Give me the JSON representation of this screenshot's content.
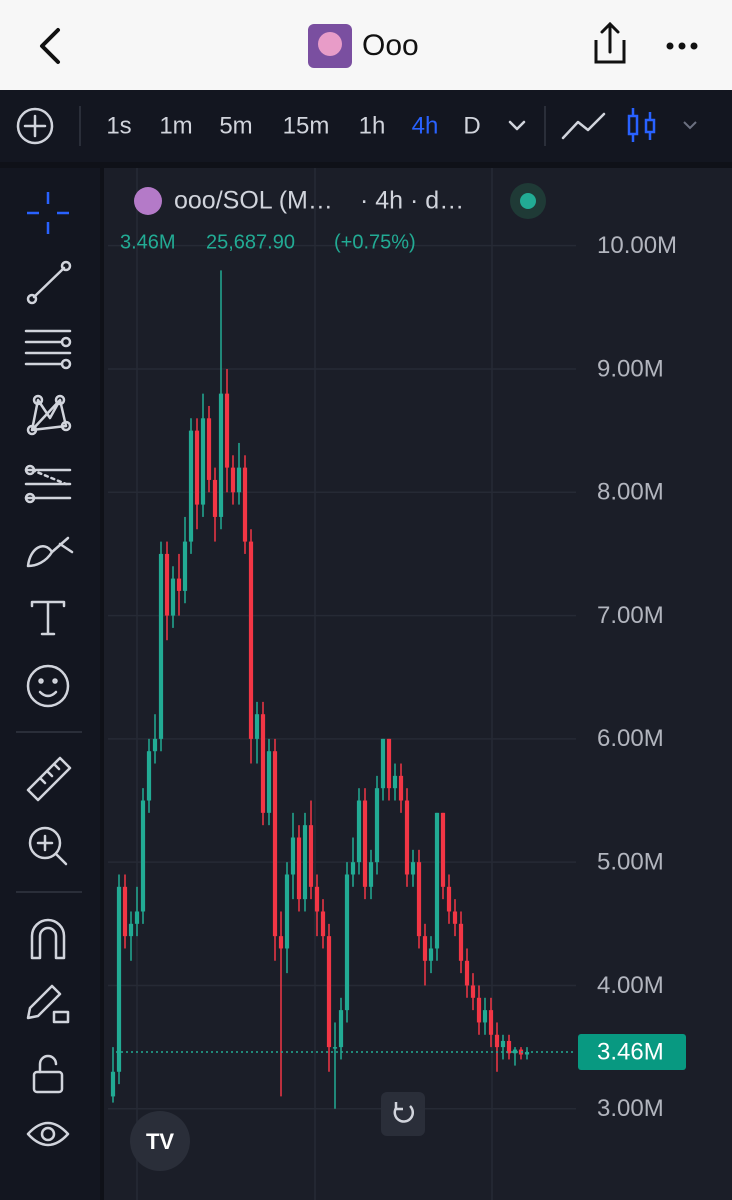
{
  "header": {
    "title": "Ooo"
  },
  "toolbar": {
    "timeframes": [
      "1s",
      "1m",
      "5m",
      "15m",
      "1h",
      "4h",
      "D"
    ],
    "active": "4h"
  },
  "legend": {
    "symbol": "ooo/SOL (M…",
    "interval": "· 4h · d…",
    "price": "3.46M",
    "change": "25,687.90",
    "change_pct": "(+0.75%)"
  },
  "chart_data": {
    "type": "candlestick",
    "open": [
      3.1,
      3.3,
      4.8,
      4.4,
      4.5,
      4.6,
      5.5,
      5.9,
      6.0,
      7.5,
      7.0,
      7.3,
      7.2,
      7.6,
      8.5,
      7.9,
      8.6,
      8.1,
      7.8,
      8.8,
      8.2,
      8.0,
      8.2,
      7.6,
      6.0,
      6.2,
      5.4,
      5.9,
      4.4,
      4.3,
      4.9,
      5.2,
      4.7,
      5.3,
      4.8,
      4.6,
      4.4,
      3.5,
      3.5,
      3.8,
      4.9,
      5.0,
      5.5,
      4.8,
      5.0,
      5.6,
      6.0,
      5.6,
      5.7,
      5.5,
      4.9,
      5.0,
      4.4,
      4.2,
      4.3,
      5.4,
      4.8,
      4.6,
      4.5,
      4.2,
      4.0,
      3.9,
      3.7,
      3.8,
      3.6,
      3.5,
      3.55,
      3.45,
      3.48,
      3.44
    ],
    "high": [
      3.5,
      4.9,
      4.9,
      4.6,
      4.8,
      5.6,
      6.0,
      6.2,
      7.6,
      7.6,
      7.4,
      7.5,
      7.8,
      8.6,
      8.6,
      8.8,
      8.7,
      8.2,
      9.8,
      9.0,
      8.3,
      8.4,
      8.3,
      7.7,
      6.3,
      6.3,
      6.0,
      6.0,
      4.6,
      5.0,
      5.4,
      5.3,
      5.4,
      5.5,
      4.9,
      4.7,
      4.5,
      3.7,
      3.9,
      5.0,
      5.2,
      5.6,
      5.6,
      5.1,
      5.7,
      6.0,
      6.0,
      5.8,
      5.8,
      5.6,
      5.1,
      5.1,
      4.5,
      4.4,
      5.4,
      5.4,
      4.9,
      4.7,
      4.6,
      4.3,
      4.1,
      4.0,
      3.9,
      3.9,
      3.7,
      3.6,
      3.6,
      3.5,
      3.5,
      3.5
    ],
    "low": [
      3.05,
      3.2,
      4.3,
      4.2,
      4.4,
      4.5,
      5.4,
      5.8,
      5.9,
      6.8,
      6.9,
      7.0,
      7.1,
      7.5,
      7.7,
      7.8,
      8.0,
      7.6,
      7.7,
      8.0,
      7.9,
      7.9,
      7.5,
      5.8,
      5.8,
      5.3,
      5.3,
      4.2,
      3.1,
      4.1,
      4.7,
      4.6,
      4.6,
      4.7,
      4.4,
      4.3,
      3.3,
      3.0,
      3.4,
      3.7,
      4.8,
      4.9,
      4.7,
      4.7,
      4.9,
      5.5,
      5.5,
      5.5,
      5.4,
      4.8,
      4.8,
      4.3,
      4.0,
      4.1,
      4.2,
      4.7,
      4.5,
      4.4,
      4.1,
      3.9,
      3.8,
      3.6,
      3.6,
      3.5,
      3.3,
      3.4,
      3.4,
      3.35,
      3.4,
      3.4
    ],
    "close": [
      3.3,
      4.8,
      4.4,
      4.5,
      4.6,
      5.5,
      5.9,
      6.0,
      7.5,
      7.0,
      7.3,
      7.2,
      7.6,
      8.5,
      7.9,
      8.6,
      8.1,
      7.8,
      8.8,
      8.2,
      8.0,
      8.2,
      7.6,
      6.0,
      6.2,
      5.4,
      5.9,
      4.4,
      4.3,
      4.9,
      5.2,
      4.7,
      5.3,
      4.8,
      4.6,
      4.4,
      3.5,
      3.5,
      3.8,
      4.9,
      5.0,
      5.5,
      4.8,
      5.0,
      5.6,
      6.0,
      5.6,
      5.7,
      5.5,
      4.9,
      5.0,
      4.4,
      4.2,
      4.3,
      5.4,
      4.8,
      4.6,
      4.5,
      4.2,
      4.0,
      3.9,
      3.7,
      3.8,
      3.6,
      3.5,
      3.55,
      3.45,
      3.48,
      3.44,
      3.46
    ],
    "up_color": "#22ab94",
    "down_color": "#f23645",
    "ylim": [
      2.26,
      10.63
    ],
    "yticks": [
      {
        "value": 3,
        "label": "3.00M"
      },
      {
        "value": 4,
        "label": "4.00M"
      },
      {
        "value": 5,
        "label": "5.00M"
      },
      {
        "value": 6,
        "label": "6.00M"
      },
      {
        "value": 7,
        "label": "7.00M"
      },
      {
        "value": 8,
        "label": "8.00M"
      },
      {
        "value": 9,
        "label": "9.00M"
      },
      {
        "value": 10,
        "label": "10.00M"
      }
    ],
    "last_price": {
      "value": 3.46,
      "label": "3.46M"
    },
    "grid": true
  }
}
